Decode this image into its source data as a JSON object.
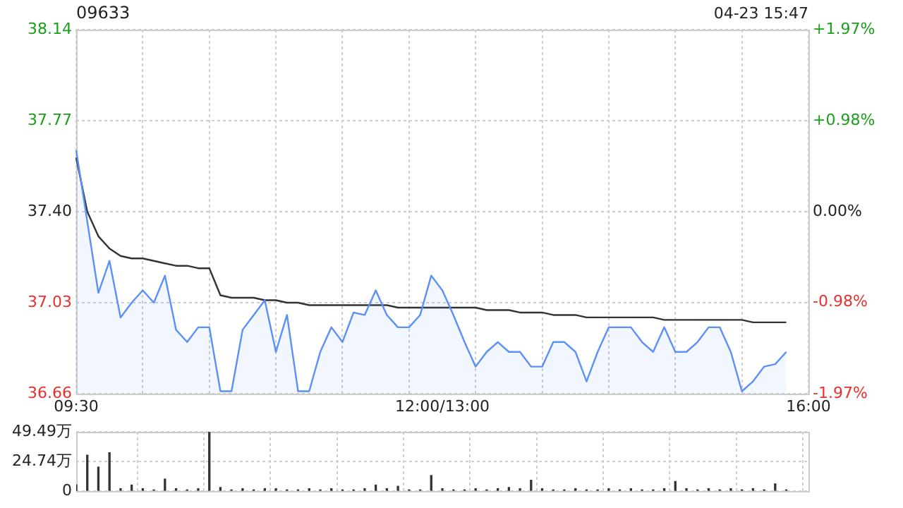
{
  "chart_data": [
    {
      "type": "line",
      "title": "09633",
      "annotations": [
        "04-23 15:47"
      ],
      "categories": [
        "09:30",
        null,
        null,
        null,
        null,
        null,
        null,
        null,
        null,
        null,
        null,
        null,
        null,
        null,
        null,
        null,
        null,
        null,
        null,
        null,
        null,
        null,
        null,
        null,
        null,
        null,
        null,
        null,
        null,
        null,
        null,
        null,
        null,
        "12:00/13:00",
        null,
        null,
        null,
        null,
        null,
        null,
        null,
        null,
        null,
        null,
        null,
        null,
        null,
        null,
        null,
        null,
        null,
        null,
        null,
        null,
        null,
        null,
        null,
        null,
        null,
        null,
        null,
        null,
        null,
        null,
        null,
        null,
        "16:00"
      ],
      "ylim": [
        36.66,
        38.14
      ],
      "yticks": [
        36.66,
        37.03,
        {
          "value": 37.4,
          "label": "37.40"
        },
        37.77,
        38.14
      ],
      "y2lim": [
        -1.97,
        1.97
      ],
      "y2ticks": [
        {
          "value": -1.97,
          "label": "-1.97%"
        },
        {
          "value": -0.98,
          "label": "-0.98%"
        },
        {
          "value": 0,
          "label": "0.00%"
        },
        {
          "value": 0.98,
          "label": "+0.98%"
        },
        {
          "value": 1.97,
          "label": "+1.97%"
        }
      ],
      "grid": true,
      "series": [
        {
          "type": "area",
          "color": "#5b8ff9",
          "values": [
            37.65,
            37.36,
            37.07,
            37.2,
            36.97,
            37.03,
            37.08,
            37.03,
            37.14,
            36.92,
            36.87,
            36.93,
            36.93,
            36.67,
            36.67,
            36.92,
            36.98,
            37.04,
            36.83,
            36.98,
            36.67,
            36.67,
            36.83,
            36.93,
            36.87,
            36.99,
            36.98,
            37.08,
            36.98,
            36.93,
            36.93,
            36.98,
            37.14,
            37.08,
            36.98,
            36.87,
            36.77,
            36.83,
            36.87,
            36.83,
            36.83,
            36.77,
            36.77,
            36.87,
            36.87,
            36.83,
            36.71,
            36.83,
            36.93,
            36.93,
            36.93,
            36.87,
            36.83,
            36.93,
            36.83,
            36.83,
            36.87,
            36.93,
            36.93,
            36.83,
            36.67,
            36.71,
            36.77,
            36.78,
            36.83,
            null,
            null
          ]
        },
        {
          "type": "line",
          "color": "#333333",
          "values": [
            37.62,
            37.4,
            37.3,
            37.25,
            37.22,
            37.21,
            37.21,
            37.2,
            37.19,
            37.18,
            37.18,
            37.17,
            37.17,
            37.06,
            37.05,
            37.05,
            37.05,
            37.04,
            37.04,
            37.03,
            37.03,
            37.02,
            37.02,
            37.02,
            37.02,
            37.02,
            37.02,
            37.02,
            37.02,
            37.01,
            37.01,
            37.01,
            37.01,
            37.01,
            37.01,
            37.01,
            37.01,
            37.0,
            37.0,
            37.0,
            36.99,
            36.99,
            36.99,
            36.98,
            36.98,
            36.98,
            36.97,
            36.97,
            36.97,
            36.97,
            36.97,
            36.97,
            36.97,
            36.96,
            36.96,
            36.96,
            36.96,
            36.96,
            36.96,
            36.96,
            36.96,
            36.95,
            36.95,
            36.95,
            36.95,
            null,
            null
          ]
        }
      ]
    },
    {
      "type": "bar",
      "color": "#333333",
      "categories": [
        null,
        null,
        null,
        null,
        null,
        null,
        null,
        null,
        null,
        null,
        null,
        null,
        null,
        null,
        null,
        null,
        null,
        null,
        null,
        null,
        null,
        null,
        null,
        null,
        null,
        null,
        null,
        null,
        null,
        null,
        null,
        null,
        null,
        null,
        null,
        null,
        null,
        null,
        null,
        null,
        null,
        null,
        null,
        null,
        null,
        null,
        null,
        null,
        null,
        null,
        null,
        null,
        null,
        null,
        null,
        null,
        null,
        null,
        null,
        null,
        null,
        null,
        null,
        null,
        null,
        null,
        null
      ],
      "ylim": [
        0,
        49.49
      ],
      "yticks": [
        0,
        {
          "value": 24.74,
          "label": "24.74万"
        },
        {
          "value": 49.49,
          "label": "49.49万"
        }
      ],
      "grid": true,
      "tick_labels": "y",
      "values": [
        5,
        30,
        20,
        32,
        2,
        5,
        2,
        1,
        10,
        2,
        1,
        2,
        49,
        3,
        1,
        2,
        1,
        2,
        2,
        1,
        1,
        2,
        1,
        2,
        1,
        1,
        2,
        5,
        2,
        4,
        1,
        1,
        13,
        2,
        1,
        1,
        2,
        1,
        2,
        3,
        2,
        9,
        2,
        1,
        1,
        2,
        1,
        1,
        2,
        1,
        2,
        1,
        1,
        2,
        8,
        2,
        1,
        2,
        1,
        2,
        1,
        2,
        1,
        6,
        1,
        null,
        null
      ]
    }
  ]
}
